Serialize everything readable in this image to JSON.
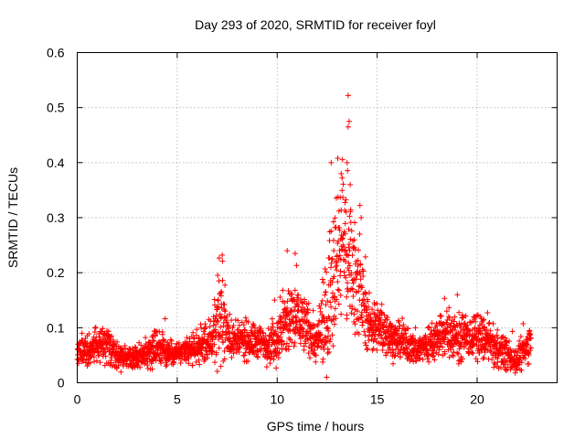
{
  "colors": {
    "points": "#ff0000",
    "axes": "#000000",
    "grid": "#a0a0a0",
    "background": "#ffffff"
  },
  "chart_data": {
    "type": "scatter",
    "title": "Day 293 of 2020, SRMTID for receiver foyl",
    "xlabel": "GPS time / hours",
    "ylabel": "SRMTID / TECUs",
    "xlim": [
      0,
      24
    ],
    "ylim": [
      0,
      0.6
    ],
    "grid": true,
    "marker": "+",
    "x_ticks": [
      0,
      5,
      10,
      15,
      20
    ],
    "y_ticks": [
      0,
      0.1,
      0.2,
      0.3,
      0.4,
      0.5,
      0.6
    ],
    "x_tick_labels": [
      "0",
      "5",
      "10",
      "15",
      "20"
    ],
    "y_tick_labels": [
      "0",
      "0.1",
      "0.2",
      "0.3",
      "0.4",
      "0.5",
      "0.6"
    ],
    "series": [
      {
        "name": "SRMTID",
        "profile": {
          "x": [
            0.0,
            0.5,
            1.0,
            1.5,
            2.0,
            2.5,
            3.0,
            3.5,
            4.0,
            4.5,
            5.0,
            5.5,
            6.0,
            6.5,
            7.0,
            7.3,
            7.6,
            8.0,
            8.5,
            9.0,
            9.5,
            10.0,
            10.5,
            11.0,
            11.5,
            12.0,
            12.5,
            12.8,
            13.0,
            13.3,
            13.6,
            13.9,
            14.2,
            14.5,
            15.0,
            15.5,
            16.0,
            16.5,
            17.0,
            17.5,
            18.0,
            18.5,
            19.0,
            19.5,
            20.0,
            20.5,
            21.0,
            21.5,
            22.0,
            22.5,
            22.7
          ],
          "median": [
            0.06,
            0.06,
            0.065,
            0.07,
            0.05,
            0.045,
            0.045,
            0.055,
            0.065,
            0.055,
            0.055,
            0.055,
            0.065,
            0.07,
            0.1,
            0.12,
            0.08,
            0.075,
            0.075,
            0.075,
            0.07,
            0.08,
            0.11,
            0.12,
            0.1,
            0.07,
            0.12,
            0.22,
            0.25,
            0.26,
            0.22,
            0.2,
            0.16,
            0.11,
            0.1,
            0.09,
            0.075,
            0.07,
            0.06,
            0.07,
            0.08,
            0.09,
            0.085,
            0.08,
            0.085,
            0.075,
            0.06,
            0.05,
            0.04,
            0.065,
            0.075
          ],
          "spread": [
            0.03,
            0.03,
            0.03,
            0.035,
            0.025,
            0.02,
            0.02,
            0.03,
            0.035,
            0.025,
            0.025,
            0.025,
            0.03,
            0.035,
            0.07,
            0.08,
            0.04,
            0.035,
            0.035,
            0.035,
            0.035,
            0.05,
            0.08,
            0.07,
            0.05,
            0.04,
            0.12,
            0.16,
            0.14,
            0.15,
            0.14,
            0.1,
            0.1,
            0.05,
            0.05,
            0.04,
            0.035,
            0.035,
            0.03,
            0.035,
            0.04,
            0.05,
            0.05,
            0.04,
            0.045,
            0.04,
            0.035,
            0.03,
            0.025,
            0.035,
            0.04
          ]
        },
        "point_count": 2600,
        "highlight_points": [
          {
            "x": 13.55,
            "y": 0.522
          },
          {
            "x": 13.6,
            "y": 0.475
          },
          {
            "x": 13.55,
            "y": 0.465
          },
          {
            "x": 12.7,
            "y": 0.4
          },
          {
            "x": 13.5,
            "y": 0.4
          },
          {
            "x": 13.2,
            "y": 0.38
          },
          {
            "x": 13.25,
            "y": 0.372
          },
          {
            "x": 13.65,
            "y": 0.36
          },
          {
            "x": 14.2,
            "y": 0.3
          },
          {
            "x": 7.25,
            "y": 0.232
          },
          {
            "x": 10.5,
            "y": 0.24
          },
          {
            "x": 10.9,
            "y": 0.235
          }
        ]
      }
    ]
  }
}
